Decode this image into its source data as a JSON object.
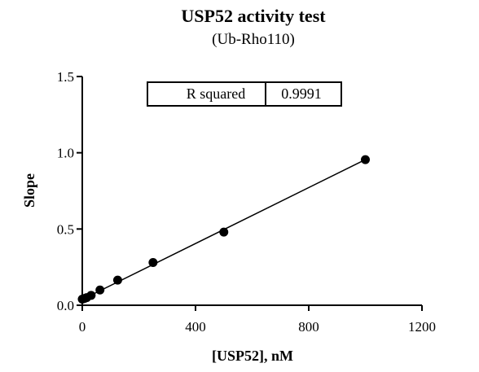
{
  "chart_data": {
    "type": "scatter",
    "title": "USP52 activity test",
    "subtitle": "(Ub-Rho110)",
    "xlabel": "[USP52], nM",
    "ylabel": "Slope",
    "xlim": [
      0,
      1200
    ],
    "ylim": [
      0,
      1.5
    ],
    "x_ticks": [
      0,
      400,
      800,
      1200
    ],
    "x_tick_labels": [
      "0",
      "400",
      "800",
      "1200"
    ],
    "y_ticks": [
      0,
      0.5,
      1.0,
      1.5
    ],
    "y_tick_labels": [
      "0.0",
      "0.5",
      "1.0",
      "1.5"
    ],
    "grid": false,
    "points": [
      {
        "x": 0,
        "y": 0.04
      },
      {
        "x": 7.8,
        "y": 0.045
      },
      {
        "x": 15.6,
        "y": 0.05
      },
      {
        "x": 31.25,
        "y": 0.065
      },
      {
        "x": 62.5,
        "y": 0.1
      },
      {
        "x": 125,
        "y": 0.165
      },
      {
        "x": 250,
        "y": 0.28
      },
      {
        "x": 500,
        "y": 0.48
      },
      {
        "x": 1000,
        "y": 0.955
      }
    ],
    "fit_line": {
      "x": [
        0,
        1000
      ],
      "y": [
        0.038,
        0.955
      ]
    },
    "annotation": {
      "label": "R squared",
      "value": "0.9991"
    }
  }
}
